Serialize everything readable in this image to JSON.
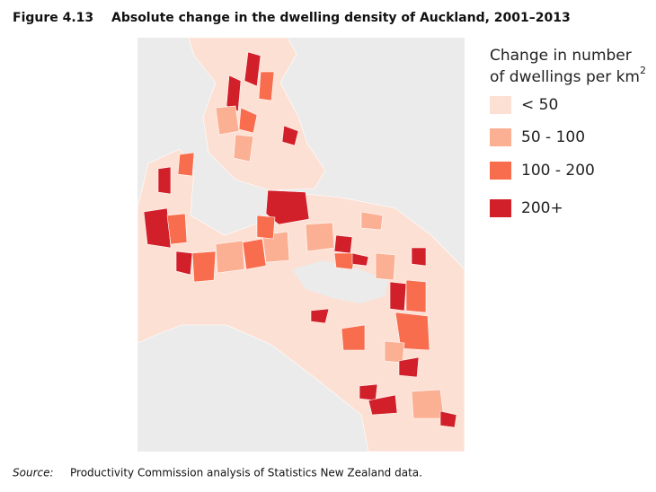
{
  "figure": {
    "label": "Figure 4.13",
    "title": "Absolute change in the dwelling density of Auckland, 2001–2013"
  },
  "legend": {
    "title_lines": [
      "Change in number",
      "of dwellings per km"
    ],
    "title_sup": "2",
    "items": [
      {
        "label": "< 50",
        "color": "#fde0d4"
      },
      {
        "label": "50 - 100",
        "color": "#fbb093"
      },
      {
        "label": "100 - 200",
        "color": "#f86d4e"
      },
      {
        "label": "200+",
        "color": "#d2202a"
      }
    ]
  },
  "source": {
    "label": "Source:",
    "text": "Productivity Commission analysis of Statistics New Zealand data."
  }
}
